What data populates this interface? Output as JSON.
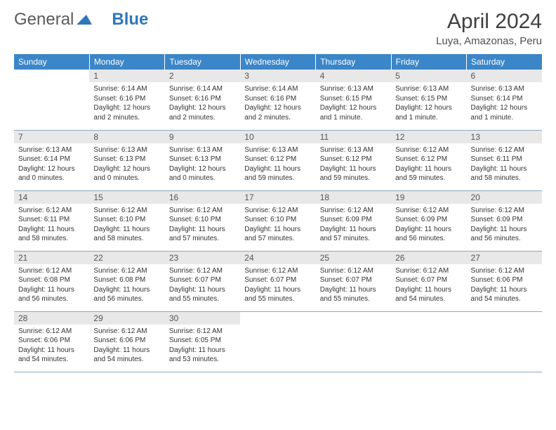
{
  "brand": {
    "part1": "General",
    "part2": "Blue",
    "color1": "#5a5a5a",
    "color2": "#2f77bb"
  },
  "title": "April 2024",
  "location": "Luya, Amazonas, Peru",
  "colors": {
    "header_bg": "#3b86c8",
    "header_fg": "#ffffff",
    "daynum_bg": "#e8e8e8",
    "daynum_fg": "#555555",
    "border": "#8aa8c0",
    "body_text": "#333333"
  },
  "daysOfWeek": [
    "Sunday",
    "Monday",
    "Tuesday",
    "Wednesday",
    "Thursday",
    "Friday",
    "Saturday"
  ],
  "weeks": [
    [
      null,
      {
        "n": "1",
        "sr": "6:14 AM",
        "ss": "6:16 PM",
        "dl": "12 hours and 2 minutes."
      },
      {
        "n": "2",
        "sr": "6:14 AM",
        "ss": "6:16 PM",
        "dl": "12 hours and 2 minutes."
      },
      {
        "n": "3",
        "sr": "6:14 AM",
        "ss": "6:16 PM",
        "dl": "12 hours and 2 minutes."
      },
      {
        "n": "4",
        "sr": "6:13 AM",
        "ss": "6:15 PM",
        "dl": "12 hours and 1 minute."
      },
      {
        "n": "5",
        "sr": "6:13 AM",
        "ss": "6:15 PM",
        "dl": "12 hours and 1 minute."
      },
      {
        "n": "6",
        "sr": "6:13 AM",
        "ss": "6:14 PM",
        "dl": "12 hours and 1 minute."
      }
    ],
    [
      {
        "n": "7",
        "sr": "6:13 AM",
        "ss": "6:14 PM",
        "dl": "12 hours and 0 minutes."
      },
      {
        "n": "8",
        "sr": "6:13 AM",
        "ss": "6:13 PM",
        "dl": "12 hours and 0 minutes."
      },
      {
        "n": "9",
        "sr": "6:13 AM",
        "ss": "6:13 PM",
        "dl": "12 hours and 0 minutes."
      },
      {
        "n": "10",
        "sr": "6:13 AM",
        "ss": "6:12 PM",
        "dl": "11 hours and 59 minutes."
      },
      {
        "n": "11",
        "sr": "6:13 AM",
        "ss": "6:12 PM",
        "dl": "11 hours and 59 minutes."
      },
      {
        "n": "12",
        "sr": "6:12 AM",
        "ss": "6:12 PM",
        "dl": "11 hours and 59 minutes."
      },
      {
        "n": "13",
        "sr": "6:12 AM",
        "ss": "6:11 PM",
        "dl": "11 hours and 58 minutes."
      }
    ],
    [
      {
        "n": "14",
        "sr": "6:12 AM",
        "ss": "6:11 PM",
        "dl": "11 hours and 58 minutes."
      },
      {
        "n": "15",
        "sr": "6:12 AM",
        "ss": "6:10 PM",
        "dl": "11 hours and 58 minutes."
      },
      {
        "n": "16",
        "sr": "6:12 AM",
        "ss": "6:10 PM",
        "dl": "11 hours and 57 minutes."
      },
      {
        "n": "17",
        "sr": "6:12 AM",
        "ss": "6:10 PM",
        "dl": "11 hours and 57 minutes."
      },
      {
        "n": "18",
        "sr": "6:12 AM",
        "ss": "6:09 PM",
        "dl": "11 hours and 57 minutes."
      },
      {
        "n": "19",
        "sr": "6:12 AM",
        "ss": "6:09 PM",
        "dl": "11 hours and 56 minutes."
      },
      {
        "n": "20",
        "sr": "6:12 AM",
        "ss": "6:09 PM",
        "dl": "11 hours and 56 minutes."
      }
    ],
    [
      {
        "n": "21",
        "sr": "6:12 AM",
        "ss": "6:08 PM",
        "dl": "11 hours and 56 minutes."
      },
      {
        "n": "22",
        "sr": "6:12 AM",
        "ss": "6:08 PM",
        "dl": "11 hours and 56 minutes."
      },
      {
        "n": "23",
        "sr": "6:12 AM",
        "ss": "6:07 PM",
        "dl": "11 hours and 55 minutes."
      },
      {
        "n": "24",
        "sr": "6:12 AM",
        "ss": "6:07 PM",
        "dl": "11 hours and 55 minutes."
      },
      {
        "n": "25",
        "sr": "6:12 AM",
        "ss": "6:07 PM",
        "dl": "11 hours and 55 minutes."
      },
      {
        "n": "26",
        "sr": "6:12 AM",
        "ss": "6:07 PM",
        "dl": "11 hours and 54 minutes."
      },
      {
        "n": "27",
        "sr": "6:12 AM",
        "ss": "6:06 PM",
        "dl": "11 hours and 54 minutes."
      }
    ],
    [
      {
        "n": "28",
        "sr": "6:12 AM",
        "ss": "6:06 PM",
        "dl": "11 hours and 54 minutes."
      },
      {
        "n": "29",
        "sr": "6:12 AM",
        "ss": "6:06 PM",
        "dl": "11 hours and 54 minutes."
      },
      {
        "n": "30",
        "sr": "6:12 AM",
        "ss": "6:05 PM",
        "dl": "11 hours and 53 minutes."
      },
      null,
      null,
      null,
      null
    ]
  ],
  "labels": {
    "sunrise": "Sunrise:",
    "sunset": "Sunset:",
    "daylight": "Daylight:"
  }
}
